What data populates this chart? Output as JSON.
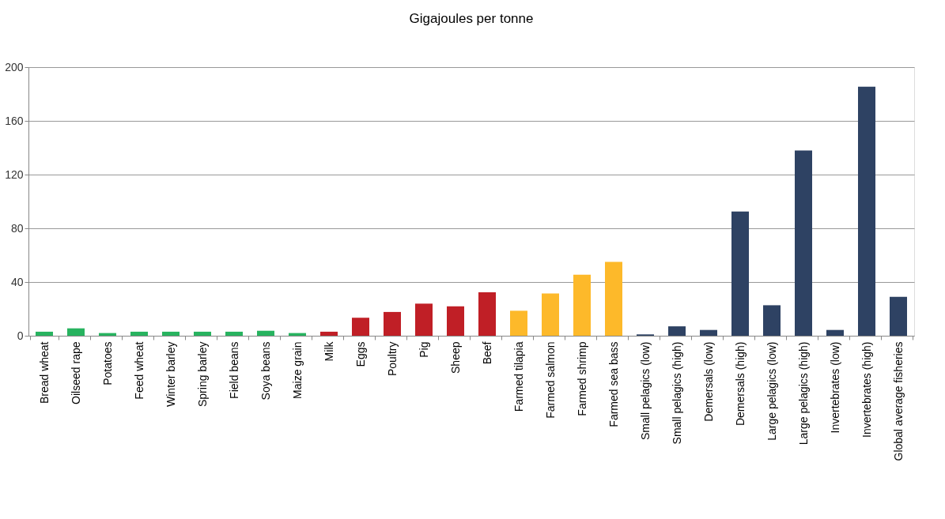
{
  "chart_data": {
    "type": "bar",
    "title": "Gigajoules per tonne",
    "categories": [
      "Bread wheat",
      "Oilseed rape",
      "Potatoes",
      "Feed wheat",
      "Winter barley",
      "Spring barley",
      "Field beans",
      "Soya beans",
      "Maize grain",
      "Milk",
      "Eggs",
      "Poultry",
      "Pig",
      "Sheep",
      "Beef",
      "Farmed tilapia",
      "Farmed salmon",
      "Farmed shrimp",
      "Farmed sea bass",
      "Small pelagics (low)",
      "Small pelagics (high)",
      "Demersals (low)",
      "Demersals (high)",
      "Large pelagics (low)",
      "Large pelagics (high)",
      "Invertebrates (low)",
      "Invertebrates (high)",
      "Global average fisheries"
    ],
    "values": [
      3,
      5.5,
      2,
      3,
      3,
      3,
      3,
      3.7,
      2,
      3,
      13.4,
      17.7,
      23.9,
      21.9,
      32.4,
      18.6,
      31.5,
      45.4,
      55,
      1,
      7,
      4.3,
      92.5,
      22.7,
      138,
      4.3,
      185.5,
      29
    ],
    "colors": [
      "#27b35f",
      "#27b35f",
      "#27b35f",
      "#27b35f",
      "#27b35f",
      "#27b35f",
      "#27b35f",
      "#27b35f",
      "#27b35f",
      "#c01f26",
      "#c01f26",
      "#c01f26",
      "#c01f26",
      "#c01f26",
      "#c01f26",
      "#fdb92a",
      "#fdb92a",
      "#fdb92a",
      "#fdb92a",
      "#2e4263",
      "#2e4263",
      "#2e4263",
      "#2e4263",
      "#2e4263",
      "#2e4263",
      "#2e4263",
      "#2e4263",
      "#2e4263"
    ],
    "ylim": [
      0,
      200
    ],
    "yticks": [
      0,
      40,
      80,
      120,
      160,
      200
    ],
    "grid": "y"
  }
}
